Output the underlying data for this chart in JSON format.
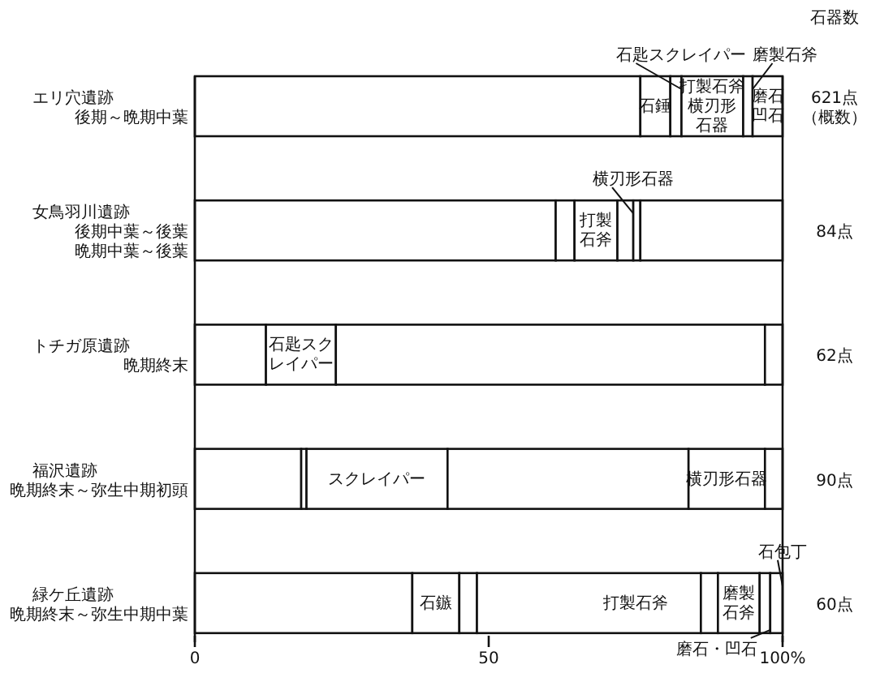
{
  "chart_data": {
    "type": "bar",
    "orientation": "horizontal",
    "stacked": true,
    "categories": [
      "エリ穴遺跡",
      "女鳥羽川遺跡",
      "トチガ原遺跡",
      "福沢遺跡",
      "緑ケ丘遺跡"
    ],
    "y2_categories": [
      "後期～晩期中葉",
      "後期中葉～後葉晩期中葉～後葉",
      "晩期終末",
      "晩期終末～弥生中期初頭",
      "晩期終末～弥生中期中葉"
    ],
    "series": [
      {
        "color": "#ffffff",
        "values": [
          75.8,
          61.4,
          12.1,
          18.1,
          37.0
        ]
      },
      {
        "color": "#ffffff",
        "values": [
          5.1,
          3.2,
          11.9,
          0.9,
          8.0
        ]
      },
      {
        "color": "#ffffff",
        "values": [
          1.9,
          7.3,
          73.0,
          24.0,
          3.0
        ]
      },
      {
        "color": "#ffffff",
        "values": [
          10.5,
          2.7,
          3.0,
          41.0,
          38.1
        ]
      },
      {
        "color": "#ffffff",
        "values": [
          1.6,
          1.2,
          null,
          13.0,
          2.9
        ]
      },
      {
        "color": "#ffffff",
        "values": [
          5.1,
          24.2,
          null,
          3.0,
          7.1
        ]
      },
      {
        "color": "#ffffff",
        "values": [
          null,
          null,
          null,
          null,
          1.8
        ]
      },
      {
        "color": "#ffffff",
        "values": [
          null,
          null,
          null,
          null,
          2.1
        ]
      }
    ],
    "xlim": [
      0,
      100
    ],
    "xticks": [
      0,
      50,
      {
        "value": 100,
        "label": "100%"
      }
    ],
    "annotations": [
      "石器数",
      "621点（概数）",
      "84点",
      "62点",
      "90点",
      "60点",
      {
        "text": "石錘",
        "x": 80.9,
        "y": "エリ穴遺跡"
      },
      {
        "text": "石匙スクレイパー",
        "x": 82.8,
        "y": "エリ穴遺跡"
      },
      {
        "text": "打製石斧",
        "x": 93.3,
        "y": "エリ穴遺跡"
      },
      {
        "text": "横刃形石器",
        "x": 93.3,
        "y": "エリ穴遺跡"
      },
      {
        "text": "磨製石斧",
        "x": 94.9,
        "y": "エリ穴遺跡"
      },
      {
        "text": "磨石凹石",
        "x": 100,
        "y": "エリ穴遺跡"
      },
      {
        "text": "打製石斧",
        "x": 71.9,
        "y": "女鳥羽川遺跡"
      },
      {
        "text": "横刃形石器",
        "x": 74.6,
        "y": "女鳥羽川遺跡"
      },
      {
        "text": "石匙スクレイパー",
        "x": 24.0,
        "y": "トチガ原遺跡"
      },
      {
        "text": "スクレイパー",
        "x": 43.0,
        "y": "福沢遺跡"
      },
      {
        "text": "横刃形石器",
        "x": 97.0,
        "y": "福沢遺跡"
      },
      {
        "text": "石鏃",
        "x": 45.0,
        "y": "緑ケ丘遺跡"
      },
      {
        "text": "打製石斧",
        "x": 86.1,
        "y": "緑ケ丘遺跡"
      },
      {
        "text": "磨製石斧",
        "x": 96.1,
        "y": "緑ケ丘遺跡"
      },
      {
        "text": "石包丁",
        "x": 100,
        "y": "緑ケ丘遺跡"
      },
      {
        "text": "磨石・凹石",
        "x": 97.9,
        "y": "緑ケ丘遺跡"
      }
    ]
  }
}
